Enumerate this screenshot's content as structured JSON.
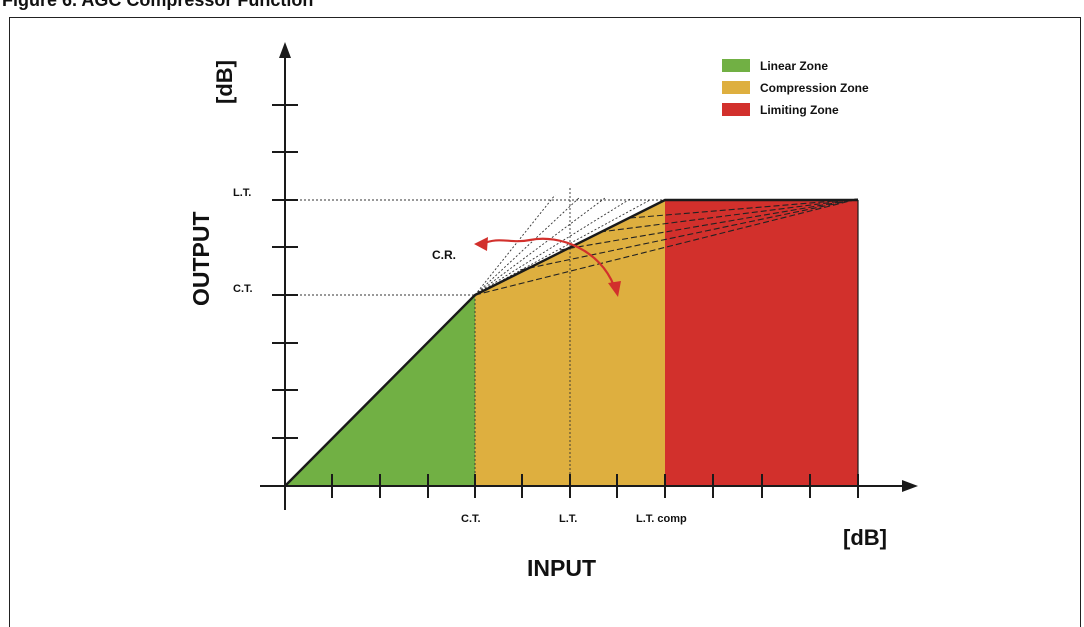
{
  "figure_caption": "Figure 6. AGC Compressor Function",
  "axes": {
    "y_title": "OUTPUT",
    "y_unit": "[dB]",
    "x_title": "INPUT",
    "x_unit": "[dB]",
    "y_tick_labels": {
      "lt": "L.T.",
      "ct": "C.T."
    },
    "x_tick_labels": {
      "ct": "C.T.",
      "lt": "L.T.",
      "lt_comp": "L.T. comp"
    }
  },
  "legend": [
    {
      "label": "Linear Zone",
      "color": "#71b044"
    },
    {
      "label": "Compression Zone",
      "color": "#deaf3f"
    },
    {
      "label": "Limiting Zone",
      "color": "#d2302c"
    }
  ],
  "annotation": {
    "text": "C.R.",
    "color": "#d2302c"
  },
  "colors": {
    "linear": "#71b044",
    "compression": "#deaf3f",
    "limiting": "#d2302c",
    "axis": "#1a1a1a"
  }
}
